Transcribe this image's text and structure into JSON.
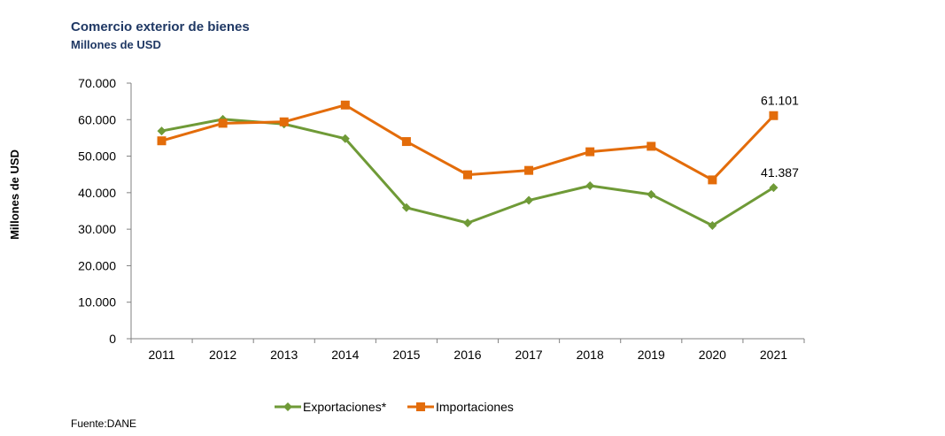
{
  "title": "Comercio exterior de bienes",
  "subtitle": "Millones de USD",
  "source": "Fuente:DANE",
  "chart_data": {
    "type": "line",
    "title": "Comercio exterior de bienes",
    "subtitle": "Millones de USD",
    "ylabel": "Millones  de USD",
    "xlabel": "",
    "categories": [
      "2011",
      "2012",
      "2013",
      "2014",
      "2015",
      "2016",
      "2017",
      "2018",
      "2019",
      "2020",
      "2021"
    ],
    "ylim": [
      0,
      70000
    ],
    "yticks": [
      0,
      10000,
      20000,
      30000,
      40000,
      50000,
      60000,
      70000
    ],
    "ytick_labels": [
      "0",
      "10.000",
      "20.000",
      "30.000",
      "40.000",
      "50.000",
      "60.000",
      "70.000"
    ],
    "grid": false,
    "legend_position": "bottom",
    "series": [
      {
        "name": "Exportaciones*",
        "color": "#6f9a37",
        "marker": "diamond",
        "values": [
          56900,
          60100,
          58800,
          54800,
          35900,
          31700,
          37900,
          41900,
          39500,
          31000,
          41387
        ]
      },
      {
        "name": "Importaciones",
        "color": "#e36c0a",
        "marker": "square",
        "values": [
          54200,
          59000,
          59400,
          64000,
          54000,
          44900,
          46100,
          51200,
          52700,
          43500,
          61101
        ]
      }
    ],
    "data_labels": [
      {
        "series": "Importaciones",
        "category": "2021",
        "text": "61.101"
      },
      {
        "series": "Exportaciones*",
        "category": "2021",
        "text": "41.387"
      }
    ]
  }
}
